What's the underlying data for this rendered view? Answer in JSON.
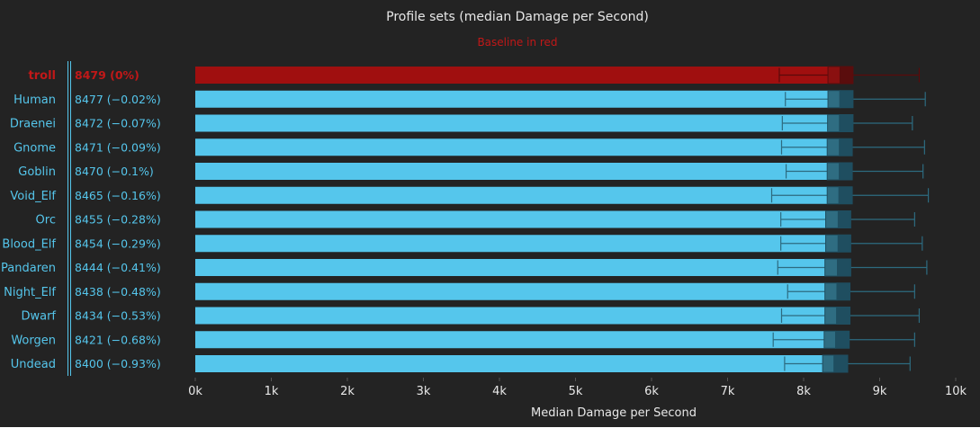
{
  "chart_data": {
    "type": "bar",
    "orientation": "horizontal",
    "title": "Profile sets (median Damage per Second)",
    "subtitle": "Baseline in red",
    "xlabel": "Median Damage per Second",
    "xlim": [
      0,
      10000
    ],
    "x_ticks": [
      0,
      1000,
      2000,
      3000,
      4000,
      5000,
      6000,
      7000,
      8000,
      9000,
      10000
    ],
    "x_tick_labels": [
      "0k",
      "1k",
      "2k",
      "3k",
      "4k",
      "5k",
      "6k",
      "7k",
      "8k",
      "9k",
      "10k"
    ],
    "baseline_color": "#a00f0f",
    "bar_color": "#55c6ec",
    "text_color": "#55c6ec",
    "baseline_text_color": "#c11818",
    "grid": false,
    "legend": "none",
    "categories": [
      "troll",
      "Human",
      "Draenei",
      "Gnome",
      "Goblin",
      "Void_Elf",
      "Orc",
      "Blood_Elf",
      "Pandaren",
      "Night_Elf",
      "Dwarf",
      "Worgen",
      "Undead"
    ],
    "value_labels": [
      "8479 (0%)",
      "8477 (−0.02%)",
      "8472 (−0.07%)",
      "8471 (−0.09%)",
      "8470 (−0.1%)",
      "8465 (−0.16%)",
      "8455 (−0.28%)",
      "8454 (−0.29%)",
      "8444 (−0.41%)",
      "8438 (−0.48%)",
      "8434 (−0.53%)",
      "8421 (−0.68%)",
      "8400 (−0.93%)"
    ],
    "baseline_index": 0,
    "series": [
      {
        "values": [
          8479,
          8477,
          8472,
          8471,
          8470,
          8465,
          8455,
          8454,
          8444,
          8438,
          8434,
          8421,
          8400
        ],
        "box_q1": [
          8320,
          8320,
          8315,
          8310,
          8310,
          8310,
          8290,
          8290,
          8280,
          8280,
          8280,
          8270,
          8250
        ],
        "box_q3": [
          8650,
          8650,
          8650,
          8640,
          8640,
          8640,
          8620,
          8620,
          8620,
          8610,
          8610,
          8600,
          8580
        ],
        "whisker_low": [
          7680,
          7760,
          7720,
          7710,
          7770,
          7580,
          7700,
          7700,
          7660,
          7790,
          7710,
          7600,
          7750
        ],
        "whisker_high": [
          9520,
          9600,
          9430,
          9590,
          9570,
          9640,
          9460,
          9560,
          9620,
          9460,
          9520,
          9460,
          9400
        ]
      }
    ]
  }
}
